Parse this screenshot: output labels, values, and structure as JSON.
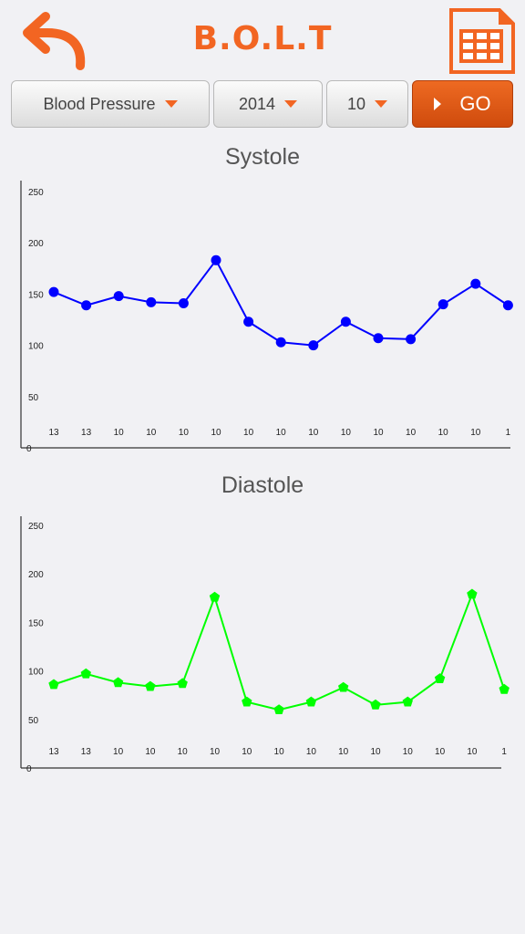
{
  "header": {
    "title": "B.O.L.T",
    "back_icon": "back-arrow-icon",
    "calendar_icon": "calendar-icon",
    "accent_color": "#f26522"
  },
  "filters": {
    "type": "Blood Pressure",
    "year": "2014",
    "month": "10",
    "go_label": "GO"
  },
  "systole": {
    "title": "Systole",
    "chart_data": {
      "type": "line",
      "title": "Systole",
      "categories": [
        "13",
        "13",
        "10",
        "10",
        "10",
        "10",
        "10",
        "10",
        "10",
        "10",
        "10",
        "10",
        "10",
        "10",
        "1"
      ],
      "values": [
        152,
        139,
        148,
        142,
        141,
        183,
        123,
        103,
        100,
        123,
        107,
        106,
        140,
        160,
        139
      ],
      "ylim": [
        0,
        250
      ],
      "yticks": [
        0,
        50,
        100,
        150,
        200,
        250
      ],
      "color": "#0000ff",
      "marker": "circle",
      "grid": false
    }
  },
  "diastole": {
    "title": "Diastole",
    "chart_data": {
      "type": "line",
      "title": "Diastole",
      "categories": [
        "13",
        "13",
        "10",
        "10",
        "10",
        "10",
        "10",
        "10",
        "10",
        "10",
        "10",
        "10",
        "10",
        "10",
        "1"
      ],
      "values": [
        86,
        97,
        88,
        84,
        87,
        176,
        68,
        60,
        68,
        83,
        65,
        68,
        92,
        179,
        81
      ],
      "ylim": [
        0,
        250
      ],
      "yticks": [
        0,
        50,
        100,
        150,
        200,
        250
      ],
      "color": "#00ff00",
      "marker": "pentagon",
      "grid": false
    }
  }
}
